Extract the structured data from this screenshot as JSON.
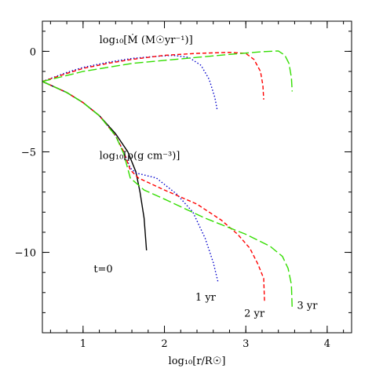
{
  "chart_data": {
    "type": "line",
    "xlabel": "log₁₀[r/R☉]",
    "ylabel": "",
    "xlim": [
      0.5,
      4.3
    ],
    "ylim": [
      -14,
      1.5
    ],
    "x_ticks": [
      1,
      2,
      3,
      4
    ],
    "y_ticks": [
      0,
      -5,
      -10
    ],
    "x_minor_step": 0.2,
    "y_minor_step": 1,
    "grid": false,
    "annotations": [
      {
        "id": "mdot",
        "text": "log₁₀[Ṁ (M☉yr⁻¹)]",
        "x": 1.2,
        "y": 0.4
      },
      {
        "id": "rho",
        "text": "log₁₀[ρ(g cm⁻³)]",
        "x": 1.2,
        "y": -5.35
      },
      {
        "id": "t0",
        "text": "t=0",
        "x": 1.13,
        "y": -11.0
      },
      {
        "id": "yr1",
        "text": "1 yr",
        "x": 2.38,
        "y": -12.4
      },
      {
        "id": "yr2",
        "text": "2 yr",
        "x": 2.98,
        "y": -13.2
      },
      {
        "id": "yr3",
        "text": "3 yr",
        "x": 3.63,
        "y": -12.8
      }
    ],
    "series": [
      {
        "id": "t0-density",
        "color": "#000000",
        "dash": "",
        "points": [
          [
            0.5,
            -1.5
          ],
          [
            0.8,
            -2.05
          ],
          [
            1.0,
            -2.55
          ],
          [
            1.2,
            -3.2
          ],
          [
            1.4,
            -4.1
          ],
          [
            1.55,
            -5.0
          ],
          [
            1.65,
            -6.0
          ],
          [
            1.7,
            -7.0
          ],
          [
            1.75,
            -8.3
          ],
          [
            1.78,
            -9.9
          ]
        ]
      },
      {
        "id": "1yr-density",
        "color": "#0000cc",
        "dash": "1.5,2.5",
        "points": [
          [
            0.5,
            -1.5
          ],
          [
            0.8,
            -2.05
          ],
          [
            1.0,
            -2.55
          ],
          [
            1.2,
            -3.2
          ],
          [
            1.4,
            -4.2
          ],
          [
            1.5,
            -5.0
          ],
          [
            1.58,
            -5.8
          ],
          [
            1.65,
            -6.05
          ],
          [
            1.9,
            -6.3
          ],
          [
            2.15,
            -7.1
          ],
          [
            2.35,
            -8.0
          ],
          [
            2.5,
            -9.3
          ],
          [
            2.6,
            -10.5
          ],
          [
            2.66,
            -11.5
          ]
        ]
      },
      {
        "id": "2yr-density",
        "color": "#ff0000",
        "dash": "5,3",
        "points": [
          [
            0.5,
            -1.5
          ],
          [
            0.8,
            -2.05
          ],
          [
            1.0,
            -2.55
          ],
          [
            1.2,
            -3.2
          ],
          [
            1.4,
            -4.2
          ],
          [
            1.5,
            -5.0
          ],
          [
            1.58,
            -5.9
          ],
          [
            1.68,
            -6.3
          ],
          [
            2.0,
            -6.9
          ],
          [
            2.4,
            -7.6
          ],
          [
            2.7,
            -8.4
          ],
          [
            2.9,
            -9.1
          ],
          [
            3.05,
            -9.8
          ],
          [
            3.15,
            -10.6
          ],
          [
            3.22,
            -11.3
          ],
          [
            3.23,
            -12.5
          ]
        ]
      },
      {
        "id": "3yr-density",
        "color": "#33dd00",
        "dash": "11,4",
        "points": [
          [
            0.5,
            -1.5
          ],
          [
            0.8,
            -2.05
          ],
          [
            1.0,
            -2.55
          ],
          [
            1.2,
            -3.2
          ],
          [
            1.4,
            -4.2
          ],
          [
            1.5,
            -5.1
          ],
          [
            1.58,
            -6.3
          ],
          [
            1.75,
            -6.9
          ],
          [
            2.0,
            -7.35
          ],
          [
            2.5,
            -8.3
          ],
          [
            3.0,
            -9.1
          ],
          [
            3.3,
            -9.7
          ],
          [
            3.45,
            -10.2
          ],
          [
            3.52,
            -10.8
          ],
          [
            3.56,
            -11.6
          ],
          [
            3.57,
            -12.8
          ]
        ]
      },
      {
        "id": "1yr-mdot",
        "color": "#0000cc",
        "dash": "1.5,2.5",
        "points": [
          [
            0.5,
            -1.5
          ],
          [
            0.8,
            -1.05
          ],
          [
            1.0,
            -0.8
          ],
          [
            1.3,
            -0.55
          ],
          [
            1.6,
            -0.35
          ],
          [
            1.9,
            -0.25
          ],
          [
            2.1,
            -0.2
          ],
          [
            2.3,
            -0.3
          ],
          [
            2.45,
            -0.7
          ],
          [
            2.55,
            -1.4
          ],
          [
            2.62,
            -2.3
          ],
          [
            2.65,
            -2.95
          ]
        ]
      },
      {
        "id": "2yr-mdot",
        "color": "#ff0000",
        "dash": "5,3",
        "points": [
          [
            0.5,
            -1.5
          ],
          [
            0.8,
            -1.1
          ],
          [
            1.0,
            -0.85
          ],
          [
            1.3,
            -0.6
          ],
          [
            1.6,
            -0.4
          ],
          [
            2.0,
            -0.2
          ],
          [
            2.4,
            -0.1
          ],
          [
            2.8,
            -0.05
          ],
          [
            3.0,
            -0.1
          ],
          [
            3.1,
            -0.4
          ],
          [
            3.18,
            -1.0
          ],
          [
            3.21,
            -1.7
          ],
          [
            3.22,
            -2.4
          ]
        ]
      },
      {
        "id": "3yr-mdot",
        "color": "#33dd00",
        "dash": "11,4",
        "points": [
          [
            0.5,
            -1.5
          ],
          [
            0.8,
            -1.2
          ],
          [
            1.0,
            -1.0
          ],
          [
            1.3,
            -0.8
          ],
          [
            1.6,
            -0.6
          ],
          [
            2.0,
            -0.45
          ],
          [
            2.4,
            -0.3
          ],
          [
            2.8,
            -0.15
          ],
          [
            3.2,
            -0.02
          ],
          [
            3.4,
            0.02
          ],
          [
            3.48,
            -0.2
          ],
          [
            3.53,
            -0.6
          ],
          [
            3.56,
            -1.3
          ],
          [
            3.57,
            -2.0
          ]
        ]
      }
    ]
  }
}
